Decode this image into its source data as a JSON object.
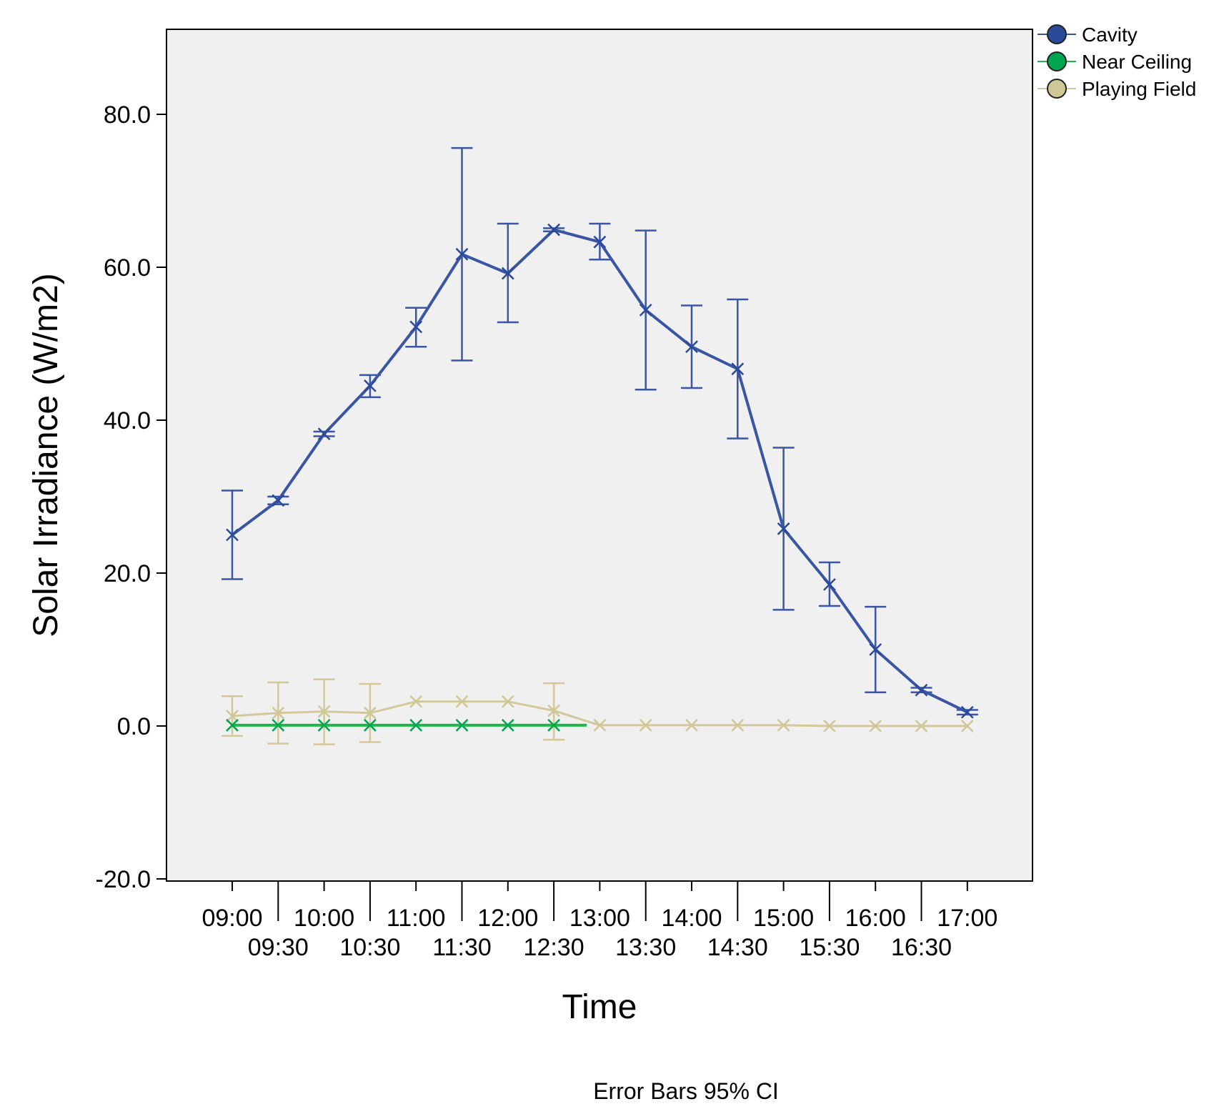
{
  "chart_data": {
    "type": "line",
    "xlabel": "Time",
    "ylabel": "Solar Irradiance (W/m2)",
    "note": "Error Bars 95% CI",
    "ylim": [
      -20,
      90
    ],
    "yticks": [
      -20,
      0,
      20,
      40,
      60,
      80
    ],
    "ytick_labels": [
      "-20.0",
      "0.0",
      "20.0",
      "40.0",
      "60.0",
      "80.0"
    ],
    "categories": [
      "09:00",
      "09:30",
      "10:00",
      "10:30",
      "11:00",
      "11:30",
      "12:00",
      "12:30",
      "13:00",
      "13:30",
      "14:00",
      "14:30",
      "15:00",
      "15:30",
      "16:00",
      "16:30",
      "17:00"
    ],
    "legend_position": "top-right outside",
    "series": [
      {
        "name": "Cavity",
        "color": "#3a55a4",
        "marker_color": "#2c4a9a",
        "values": [
          25.0,
          29.5,
          38.2,
          44.5,
          52.2,
          61.7,
          59.2,
          64.9,
          63.3,
          54.4,
          49.6,
          46.7,
          25.8,
          18.5,
          10.0,
          4.7,
          1.8
        ],
        "ci_low": [
          19.2,
          29.0,
          37.9,
          43.0,
          49.6,
          47.8,
          52.8,
          64.7,
          61.0,
          44.0,
          44.2,
          37.6,
          15.2,
          15.7,
          4.4,
          4.4,
          1.5
        ],
        "ci_high": [
          30.8,
          30.0,
          38.5,
          45.9,
          54.7,
          75.6,
          65.7,
          65.1,
          65.7,
          64.8,
          55.0,
          55.8,
          36.4,
          21.4,
          15.6,
          5.0,
          2.1
        ]
      },
      {
        "name": "Near Ceiling",
        "color": "#1eb84a",
        "marker_color": "#00a650",
        "values": [
          0.1,
          0.1,
          0.1,
          0.1,
          0.1,
          0.1,
          0.1,
          0.1,
          null,
          null,
          null,
          null,
          null,
          null,
          null,
          null,
          null
        ],
        "ci_low": [
          null,
          null,
          null,
          null,
          null,
          null,
          null,
          null,
          null,
          null,
          null,
          null,
          null,
          null,
          null,
          null,
          null
        ],
        "ci_high": [
          null,
          null,
          null,
          null,
          null,
          null,
          null,
          null,
          null,
          null,
          null,
          null,
          null,
          null,
          null,
          null,
          null
        ]
      },
      {
        "name": "Playing Field",
        "color": "#d2c89a",
        "marker_color": "#cfc795",
        "values": [
          1.3,
          1.7,
          1.9,
          1.7,
          3.2,
          3.2,
          3.2,
          2.0,
          0.1,
          0.1,
          0.1,
          0.1,
          0.1,
          0.0,
          0.0,
          0.0,
          0.0
        ],
        "ci_low": [
          -1.3,
          -2.3,
          -2.4,
          -2.1,
          null,
          null,
          null,
          -1.8,
          null,
          null,
          null,
          null,
          null,
          null,
          null,
          null,
          null
        ],
        "ci_high": [
          3.9,
          5.7,
          6.1,
          5.5,
          null,
          null,
          null,
          5.6,
          null,
          null,
          null,
          null,
          null,
          null,
          null,
          null,
          null
        ]
      }
    ]
  }
}
